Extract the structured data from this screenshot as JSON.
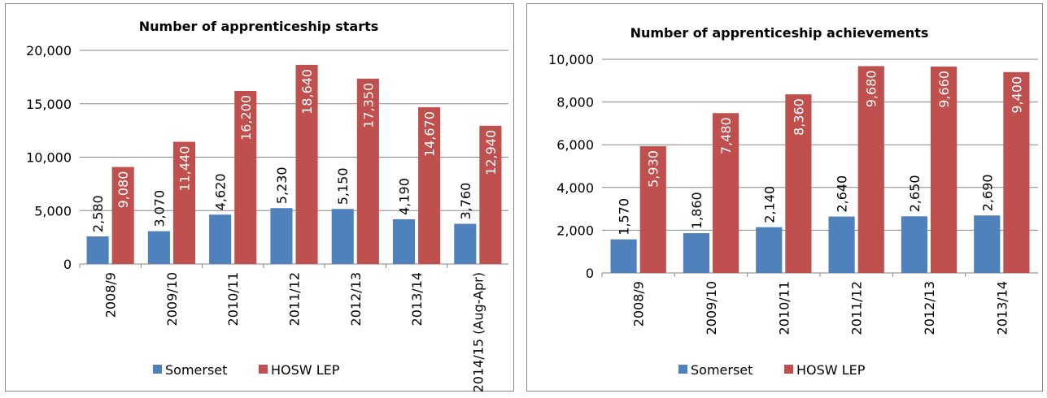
{
  "chart_data": [
    {
      "type": "bar",
      "title": "Number of apprenticeship starts",
      "categories": [
        "2008/9",
        "2009/10",
        "2010/11",
        "2011/12",
        "2012/13",
        "2013/14",
        "2014/15 (Aug-Apr)"
      ],
      "series": [
        {
          "name": "Somerset",
          "color": "#4f81bd",
          "values": [
            2580,
            3070,
            4620,
            5230,
            5150,
            4190,
            3760
          ],
          "value_labels": [
            "2,580",
            "3,070",
            "4,620",
            "5,230",
            "5,150",
            "4,190",
            "3,760"
          ]
        },
        {
          "name": "HOSW LEP",
          "color": "#c0504d",
          "values": [
            9080,
            11440,
            16200,
            18640,
            17350,
            14670,
            12940
          ],
          "value_labels": [
            "9,080",
            "11,440",
            "16,200",
            "18,640",
            "17,350",
            "14,670",
            "12,940"
          ]
        }
      ],
      "ylim": [
        0,
        20000
      ],
      "yticks": [
        0,
        {
          "value": 5000,
          "label": "5,000"
        },
        {
          "value": 10000,
          "label": "10,000"
        },
        {
          "value": 15000,
          "label": "15,000"
        },
        {
          "value": 20000,
          "label": "20,000"
        }
      ],
      "grid": true,
      "legend": "bottom"
    },
    {
      "type": "bar",
      "title": "Number of apprenticeship achievements",
      "categories": [
        "2008/9",
        "2009/10",
        "2010/11",
        "2011/12",
        "2012/13",
        "2013/14"
      ],
      "series": [
        {
          "name": "Somerset",
          "color": "#4f81bd",
          "values": [
            1570,
            1860,
            2140,
            2640,
            2650,
            2690
          ],
          "value_labels": [
            "1,570",
            "1,860",
            "2,140",
            "2,640",
            "2,650",
            "2,690"
          ]
        },
        {
          "name": "HOSW LEP",
          "color": "#c0504d",
          "values": [
            5930,
            7480,
            8360,
            9680,
            9660,
            9400
          ],
          "value_labels": [
            "5,930",
            "7,480",
            "8,360",
            "9,680",
            "9,660",
            "9,400"
          ]
        }
      ],
      "ylim": [
        0,
        10000
      ],
      "yticks": [
        0,
        {
          "value": 2000,
          "label": "2,000"
        },
        {
          "value": 4000,
          "label": "4,000"
        },
        {
          "value": 6000,
          "label": "6,000"
        },
        {
          "value": 8000,
          "label": "8,000"
        },
        {
          "value": 10000,
          "label": "10,000"
        }
      ],
      "grid": true,
      "legend": "bottom"
    }
  ]
}
